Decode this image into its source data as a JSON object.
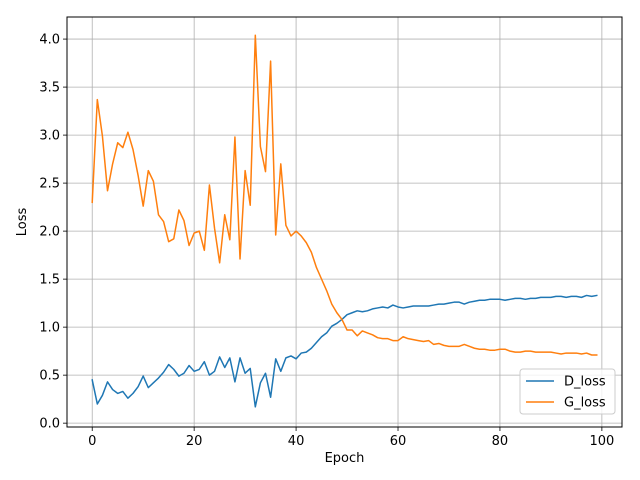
{
  "chart_data": {
    "type": "line",
    "title": "",
    "xlabel": "Epoch",
    "ylabel": "Loss",
    "xlim": [
      -4.95,
      103.95
    ],
    "ylim": [
      -0.04,
      4.23
    ],
    "xticks": [
      0,
      20,
      40,
      60,
      80,
      100
    ],
    "yticks": [
      0.0,
      0.5,
      1.0,
      1.5,
      2.0,
      2.5,
      3.0,
      3.5,
      4.0
    ],
    "xtick_labels": [
      "0",
      "20",
      "40",
      "60",
      "80",
      "100"
    ],
    "ytick_labels": [
      "0.0",
      "0.5",
      "1.0",
      "1.5",
      "2.0",
      "2.5",
      "3.0",
      "3.5",
      "4.0"
    ],
    "grid": true,
    "legend_position": "lower-right",
    "x": [
      0,
      1,
      2,
      3,
      4,
      5,
      6,
      7,
      8,
      9,
      10,
      11,
      12,
      13,
      14,
      15,
      16,
      17,
      18,
      19,
      20,
      21,
      22,
      23,
      24,
      25,
      26,
      27,
      28,
      29,
      30,
      31,
      32,
      33,
      34,
      35,
      36,
      37,
      38,
      39,
      40,
      41,
      42,
      43,
      44,
      45,
      46,
      47,
      48,
      49,
      50,
      51,
      52,
      53,
      54,
      55,
      56,
      57,
      58,
      59,
      60,
      61,
      62,
      63,
      64,
      65,
      66,
      67,
      68,
      69,
      70,
      71,
      72,
      73,
      74,
      75,
      76,
      77,
      78,
      79,
      80,
      81,
      82,
      83,
      84,
      85,
      86,
      87,
      88,
      89,
      90,
      91,
      92,
      93,
      94,
      95,
      96,
      97,
      98,
      99
    ],
    "series": [
      {
        "name": "D_loss",
        "color": "#1f77b4",
        "values": [
          0.45,
          0.2,
          0.29,
          0.43,
          0.35,
          0.31,
          0.33,
          0.26,
          0.31,
          0.38,
          0.49,
          0.37,
          0.42,
          0.47,
          0.53,
          0.61,
          0.56,
          0.49,
          0.52,
          0.6,
          0.54,
          0.56,
          0.64,
          0.5,
          0.54,
          0.69,
          0.58,
          0.68,
          0.43,
          0.68,
          0.52,
          0.57,
          0.17,
          0.42,
          0.52,
          0.27,
          0.67,
          0.54,
          0.68,
          0.7,
          0.67,
          0.73,
          0.74,
          0.78,
          0.84,
          0.9,
          0.94,
          1.01,
          1.04,
          1.08,
          1.13,
          1.15,
          1.17,
          1.16,
          1.17,
          1.19,
          1.2,
          1.21,
          1.2,
          1.23,
          1.21,
          1.2,
          1.21,
          1.22,
          1.22,
          1.22,
          1.22,
          1.23,
          1.24,
          1.24,
          1.25,
          1.26,
          1.26,
          1.24,
          1.26,
          1.27,
          1.28,
          1.28,
          1.29,
          1.29,
          1.29,
          1.28,
          1.29,
          1.3,
          1.3,
          1.29,
          1.3,
          1.3,
          1.31,
          1.31,
          1.31,
          1.32,
          1.32,
          1.31,
          1.32,
          1.32,
          1.31,
          1.33,
          1.32,
          1.33
        ]
      },
      {
        "name": "G_loss",
        "color": "#ff7f0e",
        "values": [
          2.3,
          3.37,
          2.99,
          2.42,
          2.7,
          2.92,
          2.87,
          3.03,
          2.85,
          2.58,
          2.26,
          2.63,
          2.52,
          2.17,
          2.1,
          1.89,
          1.92,
          2.22,
          2.11,
          1.85,
          1.98,
          2.0,
          1.8,
          2.48,
          2.03,
          1.67,
          2.17,
          1.91,
          2.98,
          1.71,
          2.63,
          2.27,
          4.04,
          2.88,
          2.62,
          3.77,
          1.96,
          2.7,
          2.06,
          1.95,
          2.0,
          1.95,
          1.88,
          1.78,
          1.62,
          1.5,
          1.38,
          1.24,
          1.15,
          1.08,
          0.97,
          0.97,
          0.91,
          0.96,
          0.94,
          0.92,
          0.89,
          0.88,
          0.88,
          0.86,
          0.86,
          0.9,
          0.88,
          0.87,
          0.86,
          0.85,
          0.86,
          0.82,
          0.83,
          0.81,
          0.8,
          0.8,
          0.8,
          0.82,
          0.8,
          0.78,
          0.77,
          0.77,
          0.76,
          0.76,
          0.77,
          0.77,
          0.75,
          0.74,
          0.74,
          0.75,
          0.75,
          0.74,
          0.74,
          0.74,
          0.74,
          0.73,
          0.72,
          0.73,
          0.73,
          0.73,
          0.72,
          0.73,
          0.71,
          0.71
        ]
      }
    ]
  }
}
